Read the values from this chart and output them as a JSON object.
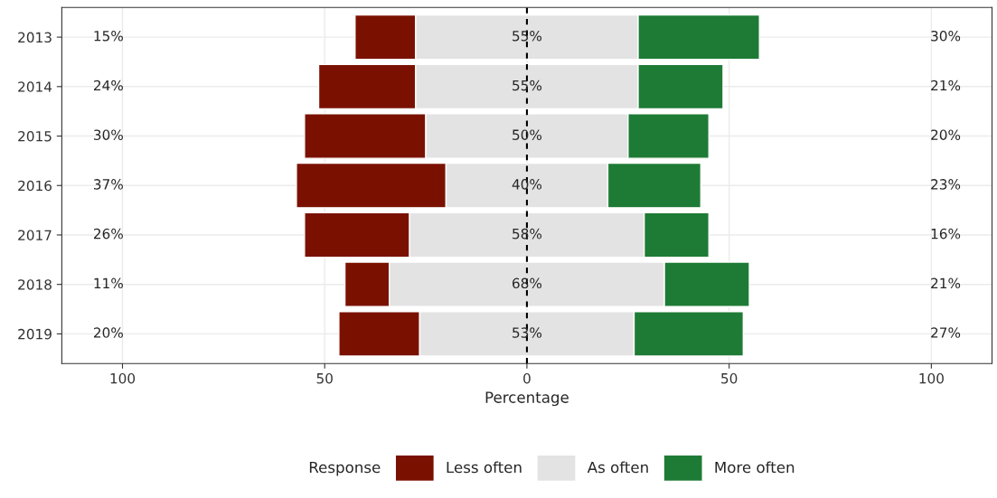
{
  "chart_data": {
    "type": "bar",
    "orientation": "horizontal",
    "xlabel": "Percentage",
    "legend_title": "Response",
    "legend": "bottom",
    "grid": true,
    "categories": [
      "2013",
      "2014",
      "2015",
      "2016",
      "2017",
      "2018",
      "2019"
    ],
    "series": [
      {
        "name": "Less often",
        "color": "#7a1100",
        "base": [
          -42.5,
          -51.5,
          -55,
          -57,
          -55,
          -45,
          -46.5
        ],
        "values": [
          15,
          24,
          30,
          37,
          26,
          11,
          20
        ],
        "value_labels": [
          "15%",
          "24%",
          "30%",
          "37%",
          "26%",
          "11%",
          "20%"
        ]
      },
      {
        "name": "As often",
        "color": "#e3e3e3",
        "base": [
          -27.5,
          -27.5,
          -25,
          -20,
          -29,
          -34,
          -26.5
        ],
        "values": [
          55,
          55,
          50,
          40,
          58,
          68,
          53
        ],
        "value_labels": [
          "55%",
          "55%",
          "50%",
          "40%",
          "58%",
          "68%",
          "53%"
        ]
      },
      {
        "name": "More often",
        "color": "#1e7b35",
        "base": [
          27.5,
          27.5,
          25,
          20,
          29,
          34,
          26.5
        ],
        "values": [
          30,
          21,
          20,
          23,
          16,
          21,
          27
        ],
        "value_labels": [
          "30%",
          "21%",
          "20%",
          "23%",
          "16%",
          "21%",
          "27%"
        ]
      }
    ],
    "xlim": [
      -115,
      115
    ],
    "xticks": [
      {
        "value": -100,
        "label": "100"
      },
      {
        "value": -50,
        "label": "50"
      },
      0,
      50,
      100
    ],
    "ref_lines": [
      {
        "axis": "x",
        "value": 0,
        "color": "#000000",
        "line_style": "dashed"
      }
    ]
  }
}
